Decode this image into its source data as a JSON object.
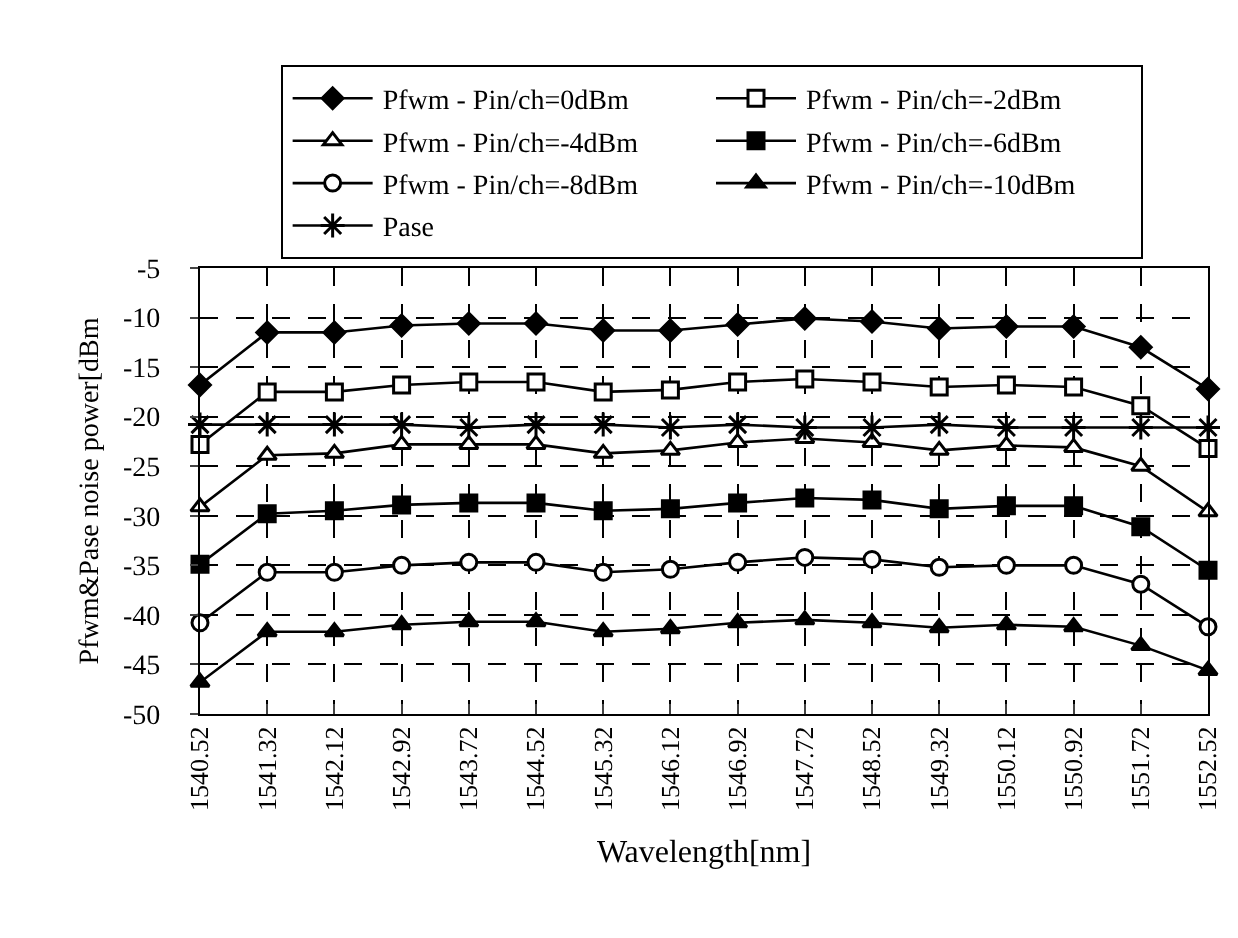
{
  "chart_data": {
    "type": "line",
    "xlabel": "Wavelength[nm]",
    "ylabel": "Pfwm&Pase noise power[dBm",
    "categories": [
      "1540.52",
      "1541.32",
      "1542.12",
      "1542.92",
      "1543.72",
      "1544.52",
      "1545.32",
      "1546.12",
      "1546.92",
      "1547.72",
      "1548.52",
      "1549.32",
      "1550.12",
      "1550.92",
      "1551.72",
      "1552.52"
    ],
    "series": [
      {
        "name": "Pfwm - Pin/ch=0dBm",
        "color": "#000000",
        "marker": "diamond",
        "values": [
          -16.8,
          -11.5,
          -11.5,
          -10.8,
          -10.6,
          -10.6,
          -11.3,
          -11.3,
          -10.7,
          -10.1,
          -10.4,
          -11.1,
          -10.9,
          -10.9,
          -13.0,
          -17.2
        ]
      },
      {
        "name": "Pfwm - Pin/ch=-2dBm",
        "color": "#000000",
        "marker": "square-open",
        "values": [
          -22.8,
          -17.5,
          -17.5,
          -16.8,
          -16.5,
          -16.5,
          -17.5,
          -17.3,
          -16.5,
          -16.2,
          -16.5,
          -17.0,
          -16.8,
          -17.0,
          -18.9,
          -23.2
        ]
      },
      {
        "name": "Pfwm - Pin/ch=-4dBm",
        "color": "#000000",
        "marker": "triangle-open",
        "values": [
          -29.1,
          -23.9,
          -23.7,
          -22.8,
          -22.8,
          -22.8,
          -23.7,
          -23.4,
          -22.6,
          -22.2,
          -22.6,
          -23.4,
          -22.9,
          -23.1,
          -25.0,
          -29.6
        ]
      },
      {
        "name": "Pfwm - Pin/ch=-6dBm",
        "color": "#000000",
        "marker": "square",
        "values": [
          -34.9,
          -29.8,
          -29.5,
          -28.9,
          -28.7,
          -28.7,
          -29.5,
          -29.3,
          -28.7,
          -28.2,
          -28.4,
          -29.3,
          -29.0,
          -29.0,
          -31.1,
          -35.5
        ]
      },
      {
        "name": "Pfwm - Pin/ch=-8dBm",
        "color": "#000000",
        "marker": "circle-open",
        "values": [
          -40.8,
          -35.7,
          -35.7,
          -35.0,
          -34.7,
          -34.7,
          -35.7,
          -35.4,
          -34.7,
          -34.2,
          -34.4,
          -35.2,
          -35.0,
          -35.0,
          -36.9,
          -41.2
        ]
      },
      {
        "name": "Pfwm - Pin/ch=-10dBm",
        "color": "#000000",
        "marker": "triangle",
        "values": [
          -46.8,
          -41.7,
          -41.7,
          -41.0,
          -40.7,
          -40.7,
          -41.7,
          -41.4,
          -40.8,
          -40.5,
          -40.8,
          -41.3,
          -41.0,
          -41.2,
          -43.1,
          -45.6
        ]
      },
      {
        "name": "Pase",
        "color": "#000000",
        "marker": "cross",
        "values": [
          -20.8,
          -20.8,
          -20.8,
          -20.8,
          -21.1,
          -20.8,
          -20.8,
          -21.1,
          -20.8,
          -21.1,
          -21.1,
          -20.8,
          -21.1,
          -21.1,
          -21.1,
          -21.1
        ]
      }
    ],
    "ylim": [
      -50,
      -5
    ],
    "yticks": [
      -50,
      -45,
      -40,
      -35,
      -30,
      -25,
      -20,
      -15,
      -10,
      -5
    ],
    "grid": true,
    "legend": "top",
    "line_style": "solid"
  }
}
